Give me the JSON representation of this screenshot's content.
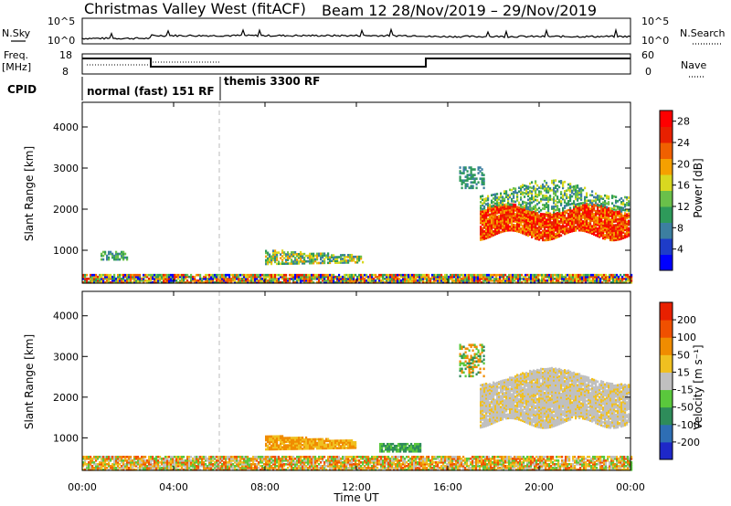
{
  "header": {
    "title_left": "Christmas Valley West (fitACF)",
    "title_right": "Beam 12  28/Nov/2019 – 29/Nov/2019"
  },
  "top_panels": {
    "nsky_label": "N.Sky",
    "nsearch_label": "N.Search",
    "nsky_ticks": [
      "10^5",
      "10^0"
    ],
    "nsearch_ticks": [
      "10^5",
      "10^0"
    ],
    "freq_label": "Freq.",
    "freq_unit": "[MHz]",
    "freq_ticks": [
      "18",
      "8"
    ],
    "nave_label": "Nave",
    "nave_ticks": [
      "60",
      "0"
    ],
    "cpid_label": "CPID",
    "cpid_modes": [
      {
        "label": "normal (fast) 151 RF",
        "start_hour": 0
      },
      {
        "label": "themis 3300 RF",
        "start_hour": 6
      }
    ]
  },
  "chart_data": [
    {
      "type": "heatmap",
      "name": "power",
      "ylabel": "Slant Range [km]",
      "xlabel": "",
      "x_ticks": [
        "00:00",
        "04:00",
        "08:00",
        "12:00",
        "16:00",
        "20:00",
        "00:00"
      ],
      "y_ticks": [
        1000,
        2000,
        3000,
        4000
      ],
      "ylim": [
        200,
        4600
      ],
      "xlim_hours": [
        0,
        24
      ],
      "colorbar": {
        "label": "Power [dB]",
        "ticks": [
          "4",
          "8",
          "12",
          "16",
          "20",
          "24",
          "28"
        ],
        "range": [
          0,
          30
        ],
        "colors": [
          "#0000ff",
          "#1e3cc8",
          "#3c7fa0",
          "#2e9a5a",
          "#6ac04a",
          "#d8d820",
          "#f5a000",
          "#f06000",
          "#e82000",
          "#ff0000"
        ]
      }
    },
    {
      "type": "heatmap",
      "name": "velocity",
      "ylabel": "Slant Range [km]",
      "xlabel": "Time UT",
      "x_ticks": [
        "00:00",
        "04:00",
        "08:00",
        "12:00",
        "16:00",
        "20:00",
        "00:00"
      ],
      "y_ticks": [
        1000,
        2000,
        3000,
        4000
      ],
      "ylim": [
        200,
        4600
      ],
      "xlim_hours": [
        0,
        24
      ],
      "colorbar": {
        "label": "Velocity [m s⁻¹]",
        "ticks": [
          "200",
          "100",
          "50",
          "15",
          "-15",
          "-50",
          "-100",
          "-200"
        ],
        "colors": [
          "#1e28c8",
          "#2e6eb4",
          "#2e8c5a",
          "#5ac83c",
          "#c0c0c0",
          "#f0c020",
          "#f08c00",
          "#f05000",
          "#e82000"
        ]
      }
    }
  ]
}
